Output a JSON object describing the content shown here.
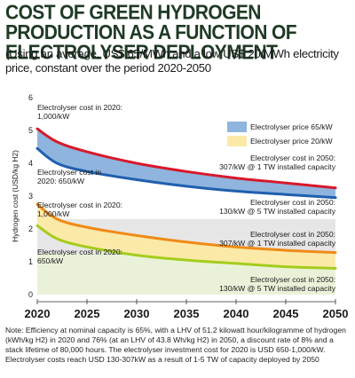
{
  "title": "COST OF GREEN HYDROGEN PRODUCTION AS A FUNCTION OF ELECTROLYSER DEPLOYMENT",
  "subtitle": "(Using an average, US$ 65/MWh and a low US$ 20/MWh electricity price, constant over the period 2020-2050",
  "note": "Note: Efficiency at nominal capacity is 65%, with a LHV of 51.2 kilowatt hour/kilogramme of hydrogen (kWh/kg H2) in 2020 and 76% (at an LHV of 43.8 Wh/kg H2) in 2050, a discount rate of 8% and a stack lifetime of 80,000 hours. The electrolyser investment cost for 2020 is USD 650-1,000/kW. Electrolyser costs reach USD 130-307kW as a result of 1-5 TW of capacity deployed by 2050",
  "colors": {
    "band65": "#8fb4de",
    "band20": "#fbe9a8",
    "line_red": "#d7192a",
    "line_blue": "#1f5fae",
    "line_orange": "#f08a16",
    "line_green": "#a5cc1e",
    "shade_grey": "#e6e6e6",
    "shade_green": "#e3efce",
    "title": "#1f3a25"
  },
  "chart_data": {
    "type": "area",
    "ylabel": "Hydrogen cost (USD/kg H2)",
    "xlabel": "",
    "ylim": [
      0,
      6
    ],
    "xlim": [
      2020,
      2050
    ],
    "x_ticks": [
      "2020",
      "2025",
      "2030",
      "2035",
      "2040",
      "2045",
      "2050"
    ],
    "y_ticks": [
      "0",
      "1",
      "2",
      "3",
      "4",
      "5",
      "6"
    ],
    "grid": false,
    "legend_position": "top-right",
    "legend": [
      {
        "name": "Electrolyser price 65/kW",
        "color_key": "band65"
      },
      {
        "name": "Electrolyser price 20/kW",
        "color_key": "band20"
      }
    ],
    "x": [
      2020,
      2022,
      2025,
      2030,
      2035,
      2040,
      2045,
      2050
    ],
    "series": [
      {
        "values": [
          5.05,
          4.65,
          4.35,
          4.0,
          3.75,
          3.55,
          3.4,
          3.25
        ],
        "color_key": "line_red"
      },
      {
        "values": [
          4.45,
          4.0,
          3.75,
          3.5,
          3.3,
          3.15,
          3.05,
          2.95
        ],
        "color_key": "line_blue"
      },
      {
        "values": [
          2.75,
          2.3,
          2.05,
          1.8,
          1.6,
          1.45,
          1.35,
          1.28
        ],
        "color_key": "line_orange"
      },
      {
        "values": [
          2.1,
          1.7,
          1.45,
          1.2,
          1.05,
          0.95,
          0.85,
          0.8
        ],
        "color_key": "line_green"
      }
    ],
    "annotations": [
      {
        "lines": [
          "Electrolyser cost in 2020:",
          "1,000/kW"
        ]
      },
      {
        "lines": [
          "Electrolyser cost in",
          "2020: 650/kW"
        ]
      },
      {
        "lines": [
          "Electrolyser cost in 2050:",
          "307/kW @ 1 TW installed capacity"
        ]
      },
      {
        "lines": [
          "Electrolyser cost in 2050:",
          "130/kW @ 5 TW installed capacity"
        ]
      },
      {
        "lines": [
          "Electrolyser cost in 2020:",
          "1,000/kW"
        ]
      },
      {
        "lines": [
          "Electrolyser cost in 2020:",
          "650/kW"
        ]
      },
      {
        "lines": [
          "Electrolyser cost in 2050:",
          "307/kW @ 1 TW installed capacity"
        ]
      },
      {
        "lines": [
          "Electrolyser cost in 2050:",
          "130/kW @ 5 TW installed capacity"
        ]
      }
    ]
  }
}
